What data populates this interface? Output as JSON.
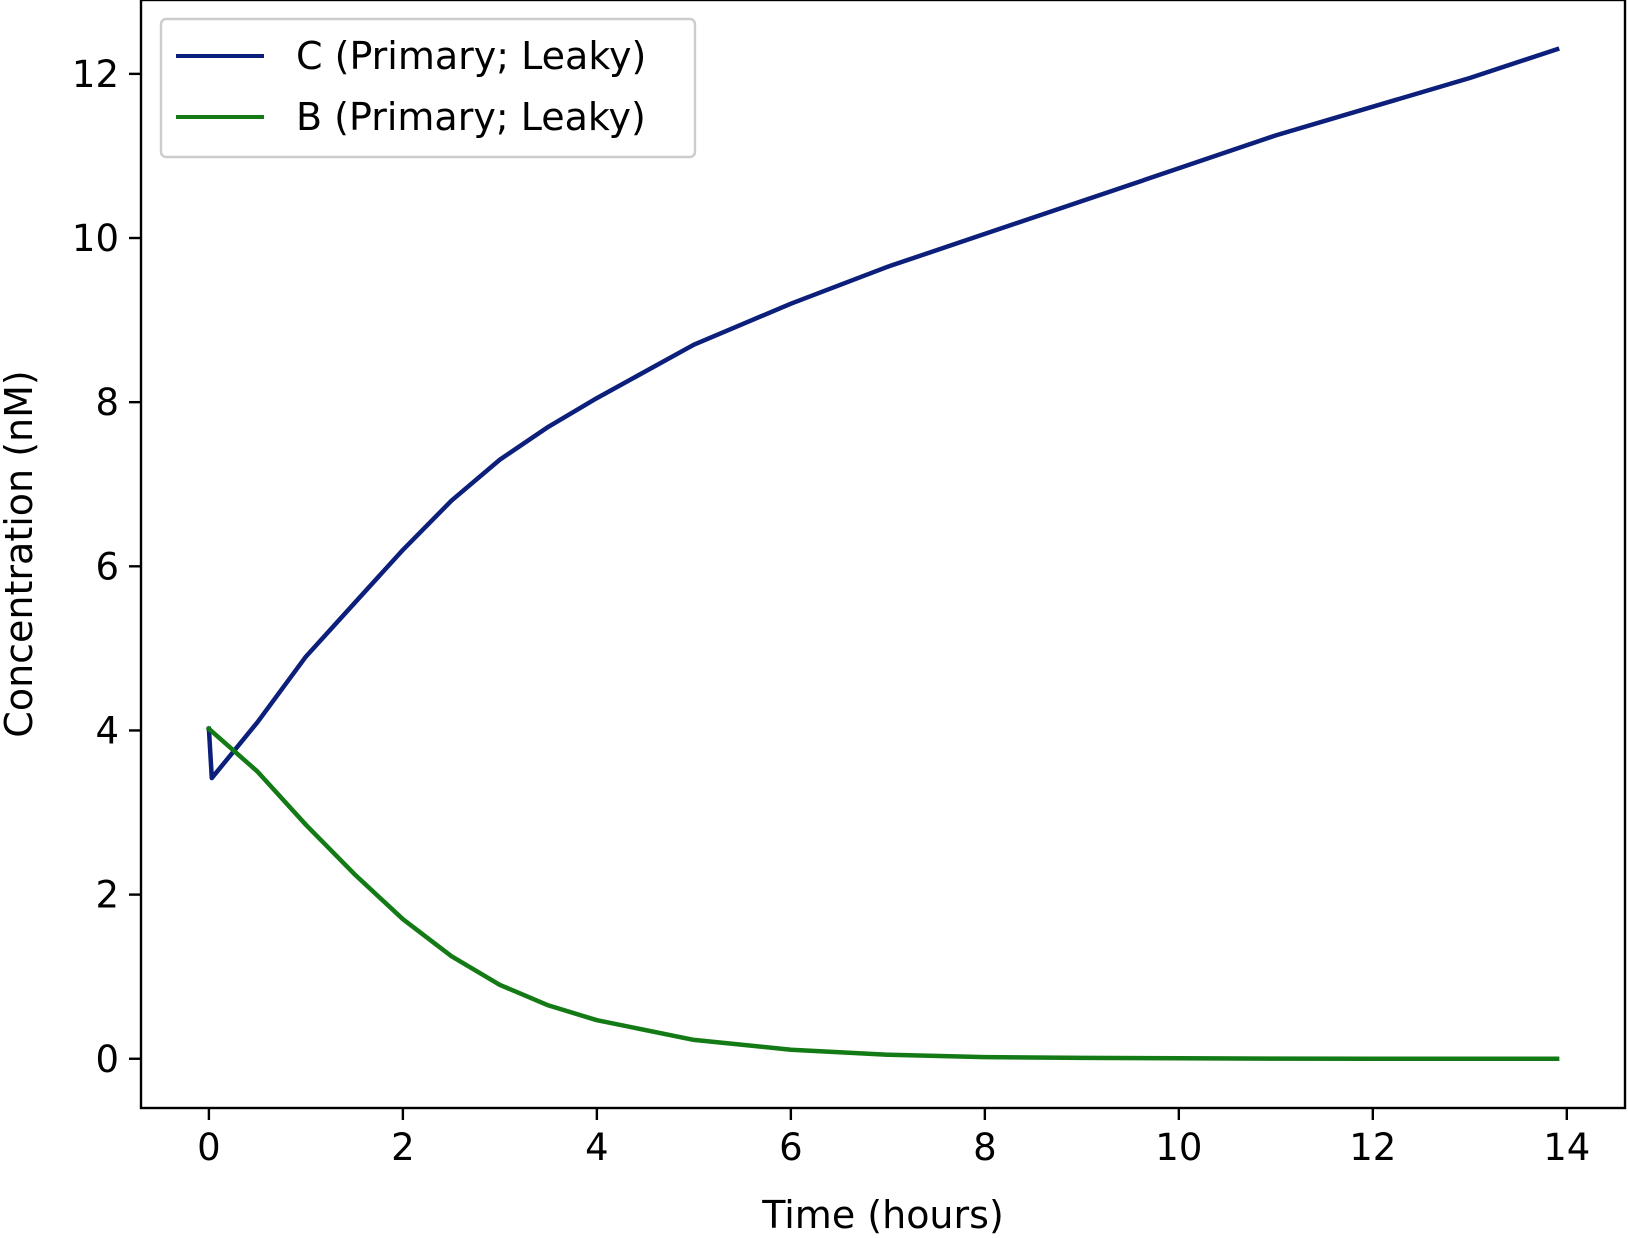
{
  "chart_data": {
    "type": "line",
    "title": "",
    "xlabel": "Time (hours)",
    "ylabel": "Concentration (nM)",
    "xlim": [
      -0.7,
      14.6
    ],
    "ylim": [
      -0.6,
      12.9
    ],
    "xticks": [
      0,
      2,
      4,
      6,
      8,
      10,
      12,
      14
    ],
    "yticks": [
      0,
      2,
      4,
      6,
      8,
      10,
      12
    ],
    "grid": false,
    "legend_position": "top-left",
    "series": [
      {
        "name": "C (Primary; Leaky)",
        "color": "#0c1f7a",
        "x": [
          0,
          0.03,
          0.5,
          1,
          1.5,
          2,
          2.5,
          3,
          3.5,
          4,
          5,
          6,
          7,
          8,
          9,
          10,
          11,
          12,
          13,
          13.9
        ],
        "y": [
          4.02,
          3.42,
          4.1,
          4.9,
          5.55,
          6.2,
          6.8,
          7.3,
          7.7,
          8.05,
          8.7,
          9.2,
          9.65,
          10.05,
          10.45,
          10.85,
          11.25,
          11.6,
          11.95,
          12.3
        ]
      },
      {
        "name": "B (Primary; Leaky)",
        "color": "#137a16",
        "x": [
          0,
          0.5,
          1,
          1.5,
          2,
          2.5,
          3,
          3.5,
          4,
          5,
          6,
          7,
          8,
          9,
          10,
          11,
          12,
          13,
          13.9
        ],
        "y": [
          4.02,
          3.5,
          2.85,
          2.25,
          1.7,
          1.25,
          0.9,
          0.65,
          0.47,
          0.23,
          0.11,
          0.05,
          0.02,
          0.01,
          0.005,
          0.002,
          0.001,
          0.0,
          0.0
        ]
      }
    ]
  }
}
